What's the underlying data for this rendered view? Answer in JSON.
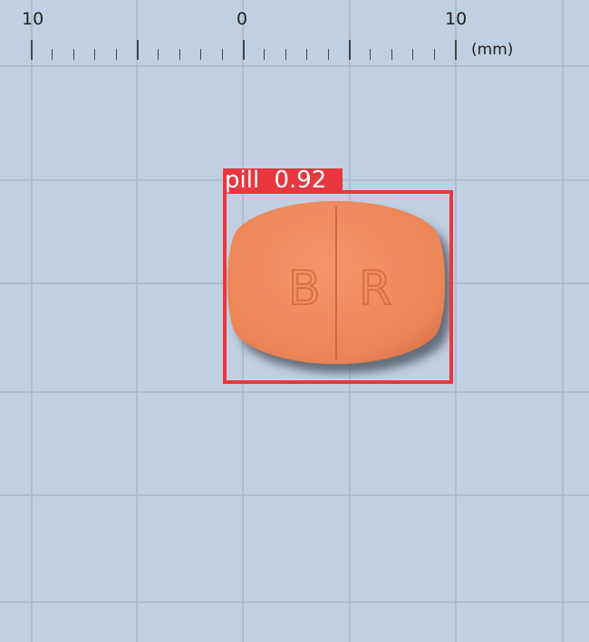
{
  "ruler": {
    "labels": [
      "10",
      "0",
      "10"
    ],
    "unit": "(mm)"
  },
  "detection": {
    "label": "pill",
    "confidence": "0.92"
  },
  "pill": {
    "imprint_left": "B",
    "imprint_right": "R",
    "color": "#ef8a5a"
  },
  "colors": {
    "background": "#c0cfe2",
    "grid": "#aebdcf",
    "box": "#e8373f"
  }
}
